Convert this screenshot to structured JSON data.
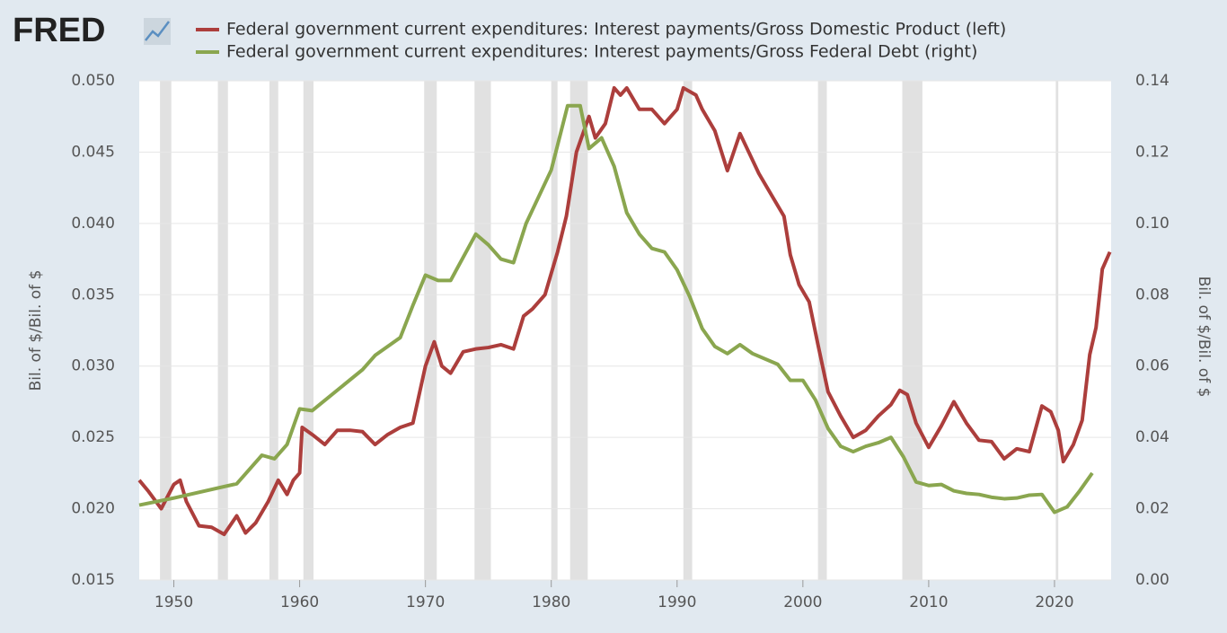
{
  "logo": "FRED",
  "chart_data": {
    "type": "line",
    "xlim": [
      1947.25,
      2024.5
    ],
    "xticks": [
      1950,
      1960,
      1970,
      1980,
      1990,
      2000,
      2010,
      2020
    ],
    "ylim": [
      0.015,
      0.05
    ],
    "yticks": [
      0.015,
      {
        "value": 0.02,
        "label": "0.020"
      },
      0.025,
      {
        "value": 0.03,
        "label": "0.030"
      },
      0.035,
      {
        "value": 0.04,
        "label": "0.040"
      },
      0.045,
      {
        "value": 0.05,
        "label": "0.050"
      }
    ],
    "y2lim": [
      0,
      0.14
    ],
    "y2ticks": [
      {
        "value": 0,
        "label": "0.00"
      },
      0.02,
      0.04,
      0.06,
      0.08,
      {
        "value": 0.1,
        "label": "0.10"
      },
      0.12,
      0.14
    ],
    "y_label": "Bil. of $/Bil. of $",
    "y2_label": "Bil. of $/Bil. of $",
    "grid": true,
    "shaded": [
      {
        "start": 1948.9,
        "end": 1949.8
      },
      {
        "start": 1953.5,
        "end": 1954.3
      },
      {
        "start": 1957.6,
        "end": 1958.3
      },
      {
        "start": 1960.3,
        "end": 1961.1
      },
      {
        "start": 1969.9,
        "end": 1970.9
      },
      {
        "start": 1973.9,
        "end": 1975.2
      },
      {
        "start": 1980.0,
        "end": 1980.5
      },
      {
        "start": 1981.5,
        "end": 1982.9
      },
      {
        "start": 1990.5,
        "end": 1991.2
      },
      {
        "start": 2001.2,
        "end": 2001.9
      },
      {
        "start": 2007.9,
        "end": 2009.5
      },
      {
        "start": 2020.1,
        "end": 2020.3
      }
    ],
    "series": [
      {
        "name": "Federal government current expenditures: Interest payments/Gross Domestic Product (left)",
        "color": "#ac3e3c",
        "axis": "y",
        "x": [
          1947.25,
          1948,
          1949,
          1950,
          1950.5,
          1951,
          1952,
          1953,
          1954,
          1955,
          1955.7,
          1956.5,
          1957.5,
          1958.3,
          1959,
          1959.5,
          1960,
          1960.2,
          1961,
          1962,
          1963,
          1964,
          1965,
          1966,
          1967,
          1968,
          1969,
          1970,
          1970.7,
          1971.3,
          1972,
          1973,
          1974,
          1975,
          1976,
          1977,
          1977.8,
          1978.5,
          1979.5,
          1980,
          1980.5,
          1981.2,
          1982,
          1983,
          1983.5,
          1984.3,
          1985,
          1985.5,
          1986,
          1987,
          1988,
          1989,
          1990,
          1990.5,
          1991.5,
          1992,
          1993,
          1994,
          1995,
          1995.7,
          1996.5,
          1997.5,
          1998.5,
          1999,
          1999.7,
          2000.5,
          2001.2,
          2002,
          2003,
          2004,
          2005,
          2006,
          2007,
          2007.7,
          2008.3,
          2009,
          2010,
          2011,
          2012,
          2013,
          2014,
          2015,
          2016,
          2017,
          2018,
          2019,
          2019.7,
          2020.3,
          2020.7,
          2021.5,
          2022.2,
          2022.8,
          2023.3,
          2023.8,
          2024.4
        ],
        "values": [
          0.022,
          0.0212,
          0.02,
          0.0217,
          0.022,
          0.0205,
          0.0188,
          0.0187,
          0.0182,
          0.0195,
          0.0183,
          0.019,
          0.0205,
          0.022,
          0.021,
          0.022,
          0.0225,
          0.0257,
          0.0252,
          0.0245,
          0.0255,
          0.0255,
          0.0254,
          0.0245,
          0.0252,
          0.0257,
          0.026,
          0.03,
          0.0317,
          0.03,
          0.0295,
          0.031,
          0.0312,
          0.0313,
          0.0315,
          0.0312,
          0.0335,
          0.034,
          0.035,
          0.0365,
          0.038,
          0.0405,
          0.045,
          0.0475,
          0.046,
          0.047,
          0.0495,
          0.049,
          0.0495,
          0.048,
          0.048,
          0.047,
          0.048,
          0.0495,
          0.049,
          0.048,
          0.0465,
          0.0437,
          0.0463,
          0.045,
          0.0435,
          0.042,
          0.0405,
          0.0378,
          0.0357,
          0.0345,
          0.0315,
          0.0282,
          0.0265,
          0.025,
          0.0255,
          0.0265,
          0.0273,
          0.0283,
          0.028,
          0.026,
          0.0243,
          0.0258,
          0.0275,
          0.026,
          0.0248,
          0.0247,
          0.0235,
          0.0242,
          0.024,
          0.0272,
          0.0268,
          0.0255,
          0.0233,
          0.0245,
          0.0262,
          0.0308,
          0.0327,
          0.0368,
          0.038
        ]
      },
      {
        "name": "Federal government current expenditures: Interest payments/Gross Federal Debt (right)",
        "color": "#8aa64f",
        "axis": "y2",
        "x": [
          1947.25,
          1950,
          1955,
          1957,
          1958,
          1959,
          1960,
          1961,
          1965,
          1966,
          1968,
          1969,
          1970,
          1971,
          1972,
          1974,
          1975,
          1976,
          1977,
          1978,
          1980,
          1981.3,
          1982.3,
          1983,
          1984,
          1985,
          1986,
          1987,
          1988,
          1989,
          1990,
          1991,
          1992,
          1993,
          1994,
          1995,
          1996,
          1998,
          1999,
          2000,
          2001,
          2002,
          2003,
          2004,
          2005,
          2006,
          2007,
          2008,
          2009,
          2010,
          2011,
          2012,
          2013,
          2014,
          2015,
          2016,
          2017,
          2018,
          2019,
          2020,
          2021,
          2022,
          2023
        ],
        "values": [
          0.021,
          0.023,
          0.027,
          0.035,
          0.034,
          0.038,
          0.048,
          0.0475,
          0.059,
          0.063,
          0.068,
          0.077,
          0.0855,
          0.084,
          0.084,
          0.097,
          0.094,
          0.09,
          0.089,
          0.1,
          0.115,
          0.133,
          0.133,
          0.121,
          0.124,
          0.116,
          0.103,
          0.097,
          0.093,
          0.092,
          0.087,
          0.0795,
          0.0705,
          0.0655,
          0.0635,
          0.066,
          0.0635,
          0.0605,
          0.056,
          0.056,
          0.0505,
          0.0425,
          0.0375,
          0.036,
          0.0375,
          0.0385,
          0.04,
          0.0345,
          0.0275,
          0.0265,
          0.0268,
          0.025,
          0.0243,
          0.024,
          0.0232,
          0.0228,
          0.023,
          0.0238,
          0.024,
          0.019,
          0.0205,
          0.025,
          0.03
        ]
      }
    ]
  }
}
